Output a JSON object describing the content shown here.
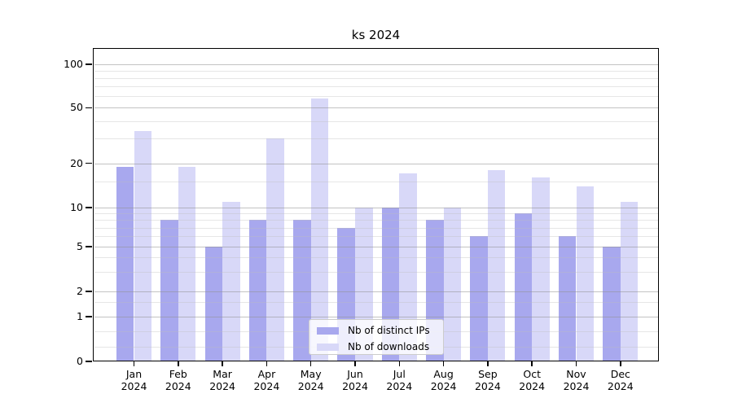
{
  "chart_data": {
    "type": "bar",
    "title": "ks 2024",
    "xlabel": "",
    "ylabel": "",
    "categories": [
      "Jan",
      "Feb",
      "Mar",
      "Apr",
      "May",
      "Jun",
      "Jul",
      "Aug",
      "Sep",
      "Oct",
      "Nov",
      "Dec"
    ],
    "category_year": "2024",
    "series": [
      {
        "name": "Nb of distinct IPs",
        "color": "#a8a8ee",
        "values": [
          19,
          8,
          5,
          8,
          8,
          7,
          10,
          8,
          6,
          9,
          6,
          5
        ]
      },
      {
        "name": "Nb of downloads",
        "color": "#d8d8f8",
        "values": [
          34,
          19,
          11,
          30,
          58,
          10,
          17,
          10,
          18,
          16,
          14,
          11
        ]
      }
    ],
    "yticks": [
      0,
      1,
      2,
      5,
      10,
      20,
      50,
      100
    ],
    "yscale": "symlog",
    "ylim": [
      0,
      130
    ],
    "grid": true,
    "legend_position": "lower center"
  }
}
